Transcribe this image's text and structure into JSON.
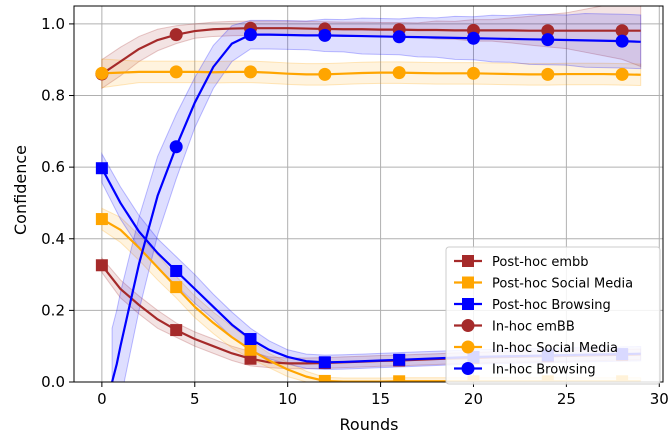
{
  "chart_data": {
    "type": "line",
    "title": "",
    "xlabel": "Rounds",
    "ylabel": "Confidence",
    "xlim": [
      -1.5,
      30.2
    ],
    "ylim": [
      0,
      1.05
    ],
    "xticks": [
      0,
      5,
      10,
      15,
      20,
      25,
      30
    ],
    "yticks": [
      0.0,
      0.2,
      0.4,
      0.6,
      0.8,
      1.0
    ],
    "grid": true,
    "legend_position": "lower-right",
    "series": [
      {
        "name": "Post-hoc embb",
        "color": "#a52a2a",
        "marker": "square",
        "curve_x": [
          0,
          1,
          2,
          3,
          4,
          5,
          6,
          7,
          8,
          9,
          10,
          11,
          12,
          13,
          14,
          15,
          16,
          17,
          18,
          19,
          20,
          21,
          22,
          23,
          24,
          25,
          26,
          27,
          28,
          29
        ],
        "curve_y": [
          0.326,
          0.26,
          0.215,
          0.175,
          0.145,
          0.12,
          0.1,
          0.08,
          0.065,
          0.055,
          0.052,
          0.052,
          0.053,
          0.055,
          0.057,
          0.059,
          0.06,
          0.062,
          0.064,
          0.066,
          0.067,
          0.069,
          0.07,
          0.071,
          0.072,
          0.073,
          0.074,
          0.075,
          0.076,
          0.077
        ],
        "band": [
          0.02,
          0.025,
          0.025,
          0.025,
          0.02,
          0.02,
          0.02,
          0.02,
          0.02,
          0.015,
          0.015,
          0.015,
          0.015,
          0.015,
          0.015,
          0.015,
          0.015,
          0.015,
          0.015,
          0.015,
          0.015,
          0.015,
          0.015,
          0.015,
          0.015,
          0.015,
          0.015,
          0.015,
          0.015,
          0.015
        ],
        "marker_x": [
          0,
          4,
          8,
          12,
          16,
          20,
          24,
          28
        ],
        "marker_y": [
          0.326,
          0.145,
          0.065,
          0.053,
          0.06,
          0.067,
          0.072,
          0.076
        ]
      },
      {
        "name": "Post-hoc Social Media",
        "color": "#ffa500",
        "marker": "square",
        "curve_x": [
          0,
          1,
          2,
          3,
          4,
          5,
          6,
          7,
          8,
          9,
          10,
          11,
          12,
          13,
          14,
          15,
          16,
          17,
          18,
          19,
          20,
          21,
          22,
          23,
          24,
          25,
          26,
          27,
          28,
          29
        ],
        "curve_y": [
          0.455,
          0.425,
          0.375,
          0.32,
          0.265,
          0.21,
          0.165,
          0.125,
          0.09,
          0.06,
          0.035,
          0.015,
          0.003,
          0.001,
          0.001,
          0.001,
          0.002,
          0.002,
          0.002,
          0.002,
          0.002,
          0.002,
          0.002,
          0.002,
          0.002,
          0.002,
          0.002,
          0.002,
          0.002,
          0.002
        ],
        "band": [
          0.03,
          0.035,
          0.035,
          0.035,
          0.03,
          0.03,
          0.03,
          0.03,
          0.025,
          0.02,
          0.02,
          0.015,
          0.01,
          0.01,
          0.01,
          0.01,
          0.01,
          0.01,
          0.01,
          0.01,
          0.01,
          0.01,
          0.01,
          0.01,
          0.01,
          0.01,
          0.01,
          0.01,
          0.01,
          0.01
        ],
        "marker_x": [
          0,
          4,
          8,
          12,
          16,
          20,
          24,
          28
        ],
        "marker_y": [
          0.455,
          0.265,
          0.09,
          0.003,
          0.002,
          0.002,
          0.002,
          0.002
        ]
      },
      {
        "name": "Post-hoc Browsing",
        "color": "#0000ff",
        "marker": "square",
        "curve_x": [
          0,
          1,
          2,
          3,
          4,
          5,
          6,
          7,
          8,
          9,
          10,
          11,
          12,
          13,
          14,
          15,
          16,
          17,
          18,
          19,
          20,
          21,
          22,
          23,
          24,
          25,
          26,
          27,
          28,
          29
        ],
        "curve_y": [
          0.597,
          0.5,
          0.42,
          0.36,
          0.31,
          0.26,
          0.21,
          0.16,
          0.12,
          0.09,
          0.07,
          0.058,
          0.055,
          0.056,
          0.058,
          0.06,
          0.062,
          0.064,
          0.066,
          0.068,
          0.07,
          0.071,
          0.072,
          0.073,
          0.074,
          0.075,
          0.076,
          0.077,
          0.078,
          0.079
        ],
        "band": [
          0.04,
          0.045,
          0.045,
          0.04,
          0.04,
          0.04,
          0.035,
          0.035,
          0.03,
          0.025,
          0.02,
          0.02,
          0.02,
          0.02,
          0.02,
          0.02,
          0.02,
          0.02,
          0.02,
          0.02,
          0.02,
          0.02,
          0.02,
          0.02,
          0.02,
          0.02,
          0.02,
          0.02,
          0.02,
          0.02
        ],
        "marker_x": [
          0,
          4,
          8,
          12,
          16,
          20,
          24,
          28
        ],
        "marker_y": [
          0.597,
          0.31,
          0.12,
          0.055,
          0.062,
          0.07,
          0.074,
          0.078
        ]
      },
      {
        "name": "In-hoc emBB",
        "color": "#a52a2a",
        "marker": "circle",
        "curve_x": [
          0,
          1,
          2,
          3,
          4,
          5,
          6,
          7,
          8,
          9,
          10,
          11,
          12,
          13,
          14,
          15,
          16,
          17,
          18,
          19,
          20,
          21,
          22,
          23,
          24,
          25,
          26,
          27,
          28,
          29
        ],
        "curve_y": [
          0.86,
          0.895,
          0.93,
          0.955,
          0.97,
          0.98,
          0.985,
          0.987,
          0.988,
          0.988,
          0.988,
          0.987,
          0.986,
          0.985,
          0.985,
          0.984,
          0.984,
          0.983,
          0.983,
          0.982,
          0.982,
          0.982,
          0.982,
          0.981,
          0.981,
          0.981,
          0.981,
          0.981,
          0.981,
          0.981
        ],
        "band": [
          0.04,
          0.04,
          0.035,
          0.03,
          0.025,
          0.02,
          0.02,
          0.02,
          0.02,
          0.02,
          0.02,
          0.02,
          0.02,
          0.02,
          0.02,
          0.02,
          0.02,
          0.02,
          0.025,
          0.025,
          0.03,
          0.03,
          0.035,
          0.04,
          0.045,
          0.05,
          0.06,
          0.07,
          0.08,
          0.1
        ],
        "marker_x": [
          0,
          4,
          8,
          12,
          16,
          20,
          24,
          28
        ],
        "marker_y": [
          0.86,
          0.97,
          0.988,
          0.986,
          0.984,
          0.982,
          0.981,
          0.981
        ]
      },
      {
        "name": "In-hoc Social Media",
        "color": "#ffa500",
        "marker": "circle",
        "curve_x": [
          0,
          1,
          2,
          3,
          4,
          5,
          6,
          7,
          8,
          9,
          10,
          11,
          12,
          13,
          14,
          15,
          16,
          17,
          18,
          19,
          20,
          21,
          22,
          23,
          24,
          25,
          26,
          27,
          28,
          29
        ],
        "curve_y": [
          0.862,
          0.864,
          0.866,
          0.866,
          0.866,
          0.866,
          0.865,
          0.866,
          0.866,
          0.864,
          0.861,
          0.859,
          0.859,
          0.861,
          0.863,
          0.864,
          0.864,
          0.863,
          0.862,
          0.862,
          0.862,
          0.861,
          0.86,
          0.859,
          0.859,
          0.86,
          0.86,
          0.86,
          0.859,
          0.858
        ],
        "band": [
          0.04,
          0.035,
          0.03,
          0.03,
          0.03,
          0.03,
          0.03,
          0.03,
          0.03,
          0.03,
          0.03,
          0.03,
          0.03,
          0.03,
          0.03,
          0.03,
          0.03,
          0.03,
          0.03,
          0.03,
          0.03,
          0.03,
          0.03,
          0.03,
          0.03,
          0.03,
          0.03,
          0.03,
          0.03,
          0.03
        ],
        "marker_x": [
          0,
          4,
          8,
          12,
          16,
          20,
          24,
          28
        ],
        "marker_y": [
          0.862,
          0.866,
          0.866,
          0.859,
          0.864,
          0.862,
          0.859,
          0.859
        ]
      },
      {
        "name": "In-hoc Browsing",
        "color": "#0000ff",
        "marker": "circle",
        "curve_x": [
          0.55,
          0.8,
          1,
          2,
          3,
          4,
          5,
          6,
          7,
          8,
          9,
          10,
          11,
          12,
          13,
          14,
          15,
          16,
          17,
          18,
          19,
          20,
          21,
          22,
          23,
          24,
          25,
          26,
          27,
          28,
          29
        ],
        "curve_y": [
          0.0,
          0.05,
          0.1,
          0.33,
          0.52,
          0.657,
          0.78,
          0.88,
          0.945,
          0.97,
          0.97,
          0.969,
          0.968,
          0.968,
          0.967,
          0.966,
          0.965,
          0.964,
          0.963,
          0.962,
          0.961,
          0.96,
          0.959,
          0.958,
          0.957,
          0.956,
          0.955,
          0.954,
          0.953,
          0.952,
          0.95
        ],
        "band": [
          0.15,
          0.15,
          0.15,
          0.13,
          0.11,
          0.09,
          0.07,
          0.06,
          0.05,
          0.04,
          0.04,
          0.04,
          0.04,
          0.045,
          0.045,
          0.05,
          0.05,
          0.05,
          0.055,
          0.055,
          0.06,
          0.06,
          0.065,
          0.065,
          0.07,
          0.07,
          0.07,
          0.075,
          0.075,
          0.075,
          0.075
        ],
        "marker_x": [
          4,
          8,
          12,
          16,
          20,
          24,
          28
        ],
        "marker_y": [
          0.657,
          0.97,
          0.968,
          0.964,
          0.96,
          0.956,
          0.952
        ]
      }
    ]
  }
}
